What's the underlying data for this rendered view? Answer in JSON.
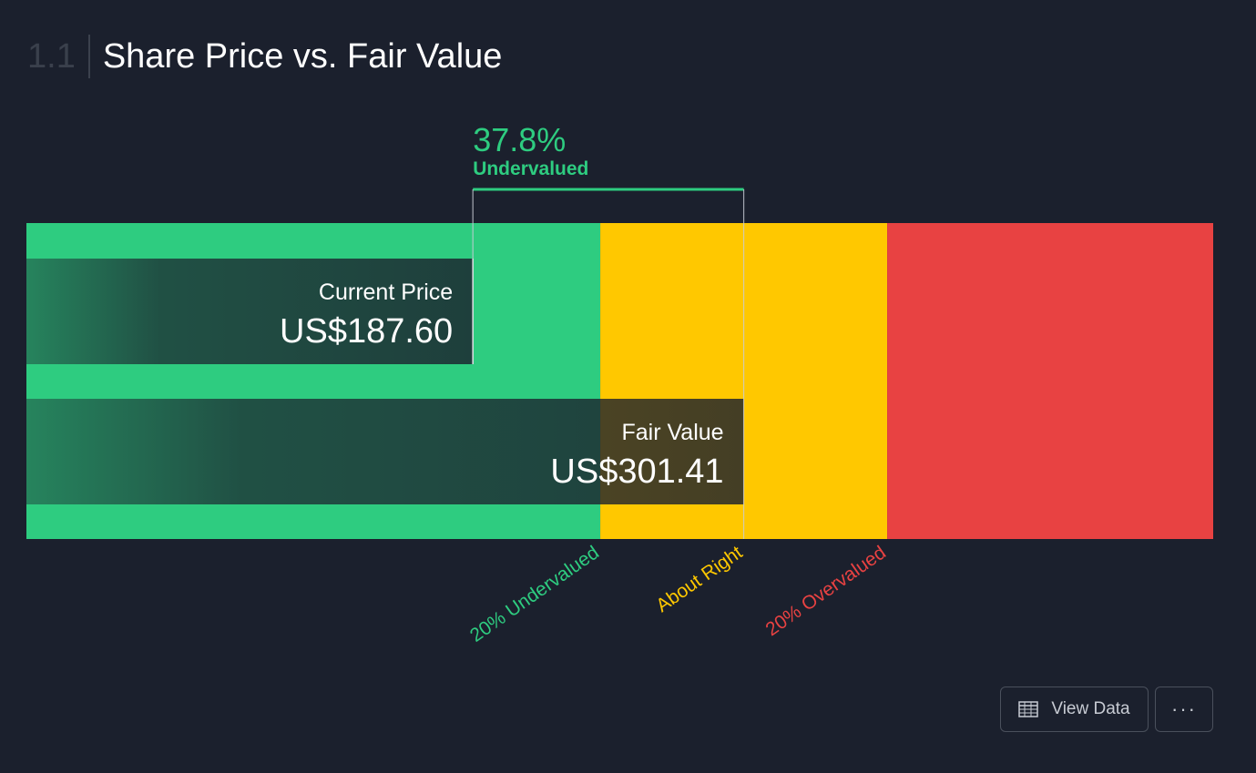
{
  "header": {
    "section_number": "1.1",
    "title": "Share Price vs. Fair Value"
  },
  "chart_data": {
    "type": "bar",
    "title": "Share Price vs. Fair Value",
    "currency": "US$",
    "bars": [
      {
        "name": "Current Price",
        "value": 187.6,
        "label": "US$187.60"
      },
      {
        "name": "Fair Value",
        "value": 301.41,
        "label": "US$301.41"
      }
    ],
    "xlim": [
      0,
      498.67
    ],
    "zones": [
      {
        "name": "20% Undervalued",
        "color": "#2ecc80",
        "from": 0,
        "to": 241.13
      },
      {
        "name": "About Right",
        "color": "#ffc800",
        "from": 241.13,
        "to": 361.69
      },
      {
        "name": "20% Overvalued",
        "color": "#e84242",
        "from": 361.69,
        "to": 498.67
      }
    ],
    "annotation": {
      "percent": "37.8%",
      "text": "Undervalued",
      "color": "#2ecc80"
    }
  },
  "buttons": {
    "view_data": "View Data",
    "more": "···"
  },
  "icons": {
    "view_data_icon": "table-icon",
    "more_icon": "ellipsis-icon"
  }
}
